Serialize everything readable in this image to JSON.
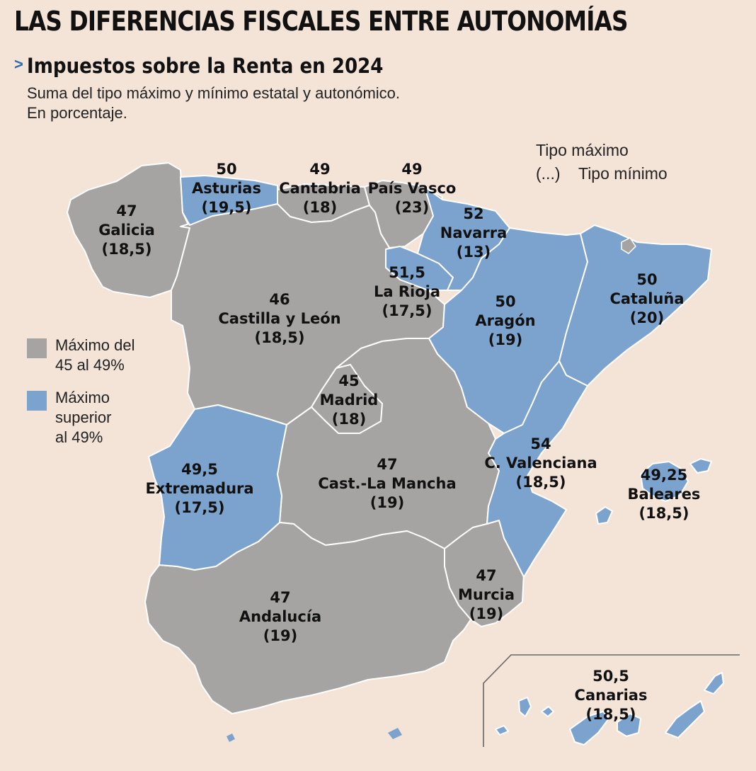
{
  "title": "LAS DIFERENCIAS FISCALES ENTRE AUTONOMÍAS",
  "subtitle_marker": ">",
  "subtitle": "Impuestos sobre la Renta en 2024",
  "description": [
    "Suma del tipo máximo y mínimo estatal y autonómico.",
    "En porcentaje."
  ],
  "key": {
    "max_label": "Tipo máximo",
    "min_marker": "(...)",
    "min_label": "Tipo mínimo"
  },
  "legend": [
    {
      "lines": [
        "Máximo del",
        "45 al 49%"
      ],
      "color": "#a5a4a2"
    },
    {
      "lines": [
        "Máximo",
        "superior",
        "al 49%"
      ],
      "color": "#7ca3ce"
    }
  ],
  "colors": {
    "background": "#f4e4d8",
    "grey": "#a5a4a2",
    "blue": "#7ca3ce"
  },
  "regions": {
    "galicia": {
      "name": "Galicia",
      "max": "47",
      "min": "(18,5)"
    },
    "asturias": {
      "name": "Asturias",
      "max": "50",
      "min": "(19,5)"
    },
    "cantabria": {
      "name": "Cantabria",
      "max": "49",
      "min": "(18)"
    },
    "pais_vasco": {
      "name": "País Vasco",
      "max": "49",
      "min": "(23)"
    },
    "navarra": {
      "name": "Navarra",
      "max": "52",
      "min": "(13)"
    },
    "la_rioja": {
      "name": "La Rioja",
      "max": "51,5",
      "min": "(17,5)"
    },
    "castilla_leon": {
      "name": "Castilla y León",
      "max": "46",
      "min": "(18,5)"
    },
    "aragon": {
      "name": "Aragón",
      "max": "50",
      "min": "(19)"
    },
    "cataluna": {
      "name": "Cataluña",
      "max": "50",
      "min": "(20)"
    },
    "madrid": {
      "name": "Madrid",
      "max": "45",
      "min": "(18)"
    },
    "extremadura": {
      "name": "Extremadura",
      "max": "49,5",
      "min": "(17,5)"
    },
    "castilla_la_mancha": {
      "name": "Cast.-La Mancha",
      "max": "47",
      "min": "(19)"
    },
    "c_valenciana": {
      "name": "C. Valenciana",
      "max": "54",
      "min": "(18,5)"
    },
    "baleares": {
      "name": "Baleares",
      "max": "49,25",
      "min": "(18,5)"
    },
    "murcia": {
      "name": "Murcia",
      "max": "47",
      "min": "(19)"
    },
    "andalucia": {
      "name": "Andalucía",
      "max": "47",
      "min": "(19)"
    },
    "canarias": {
      "name": "Canarias",
      "max": "50,5",
      "min": "(18,5)"
    }
  }
}
